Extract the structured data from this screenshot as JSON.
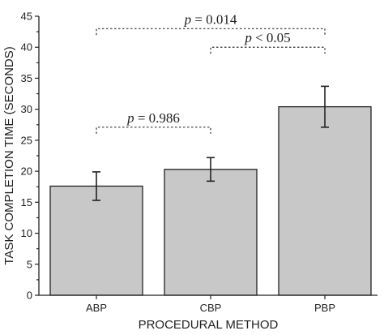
{
  "chart_data": {
    "type": "bar",
    "title": "",
    "xlabel": "PROCEDURAL METHOD",
    "ylabel": "TASK COMPLETION TIME (SECONDS)",
    "ylim": [
      0,
      45
    ],
    "yticks": [
      0,
      5,
      10,
      15,
      20,
      25,
      30,
      35,
      40,
      45
    ],
    "grid": false,
    "categories": [
      "ABP",
      "CBP",
      "PBP"
    ],
    "values": [
      17.6,
      20.3,
      30.4
    ],
    "errors": [
      2.3,
      1.9,
      3.3
    ],
    "bar_color": "#c8c8c8",
    "annotations": [
      {
        "from": 0,
        "to": 1,
        "y": 27.1,
        "label": "p = 0.986",
        "p_symbol": "p",
        "rest": " = 0.986"
      },
      {
        "from": 1,
        "to": 2,
        "y": 40.0,
        "label": "p < 0.05",
        "p_symbol": "p",
        "rest": " < 0.05"
      },
      {
        "from": 0,
        "to": 2,
        "y": 43.0,
        "label": "p = 0.014",
        "p_symbol": "p",
        "rest": " = 0.014"
      }
    ]
  }
}
